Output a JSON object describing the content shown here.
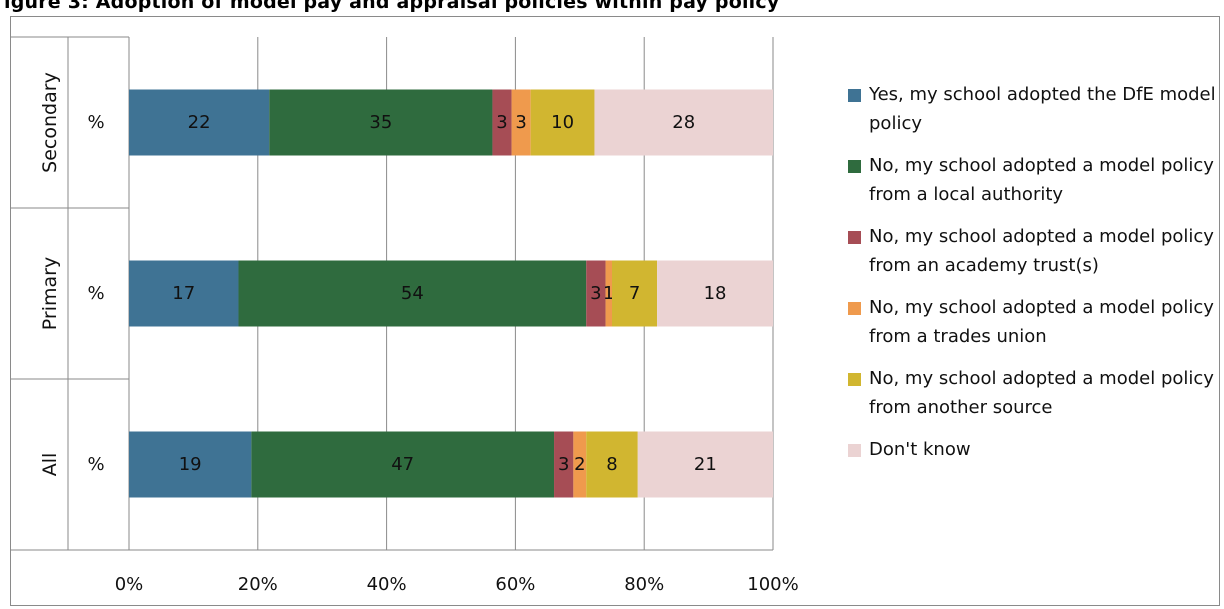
{
  "chart_data": {
    "type": "bar",
    "orientation": "horizontal",
    "stacked": "percent",
    "title": "igure 3: Adoption of model pay and appraisal policies within pay policy",
    "categories": [
      {
        "group": "Secondary",
        "label": "%"
      },
      {
        "group": "Primary",
        "label": "%"
      },
      {
        "group": "All",
        "label": "%"
      }
    ],
    "series": [
      {
        "name": "Yes, my school adopted the DfE model policy",
        "color": "#3f7394",
        "values": [
          22,
          17,
          19
        ]
      },
      {
        "name": "No, my school adopted a model policy from a local authority",
        "color": "#2f6b3e",
        "values": [
          35,
          54,
          47
        ]
      },
      {
        "name": "No, my school adopted a model policy from an academy trust(s)",
        "color": "#a64d55",
        "values": [
          3,
          3,
          3
        ]
      },
      {
        "name": "No, my school adopted a model policy from a trades union",
        "color": "#ef9a4d",
        "values": [
          3,
          1,
          2
        ]
      },
      {
        "name": "No, my school adopted a model policy from another source",
        "color": "#d1b630",
        "values": [
          10,
          7,
          8
        ]
      },
      {
        "name": "Don't know",
        "color": "#ebd3d3",
        "values": [
          28,
          18,
          21
        ]
      }
    ],
    "xlim": [
      0,
      100
    ],
    "xticks": [
      "0%",
      "20%",
      "40%",
      "60%",
      "80%",
      "100%"
    ],
    "grid": true,
    "legend_position": "right"
  }
}
